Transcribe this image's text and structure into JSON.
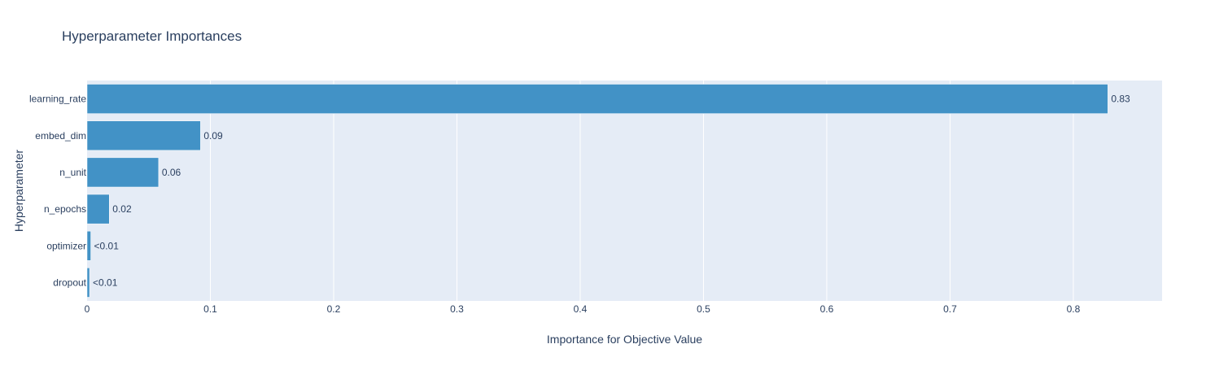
{
  "chart_data": {
    "type": "bar",
    "orientation": "horizontal",
    "title": "Hyperparameter Importances",
    "xlabel": "Importance for Objective Value",
    "ylabel": "Hyperparameter",
    "xlim": [
      0,
      0.872
    ],
    "x_ticks": [
      "0",
      "0.1",
      "0.2",
      "0.3",
      "0.4",
      "0.5",
      "0.6",
      "0.7",
      "0.8"
    ],
    "categories": [
      "learning_rate",
      "embed_dim",
      "n_unit",
      "n_epochs",
      "optimizer",
      "dropout"
    ],
    "values": [
      0.828,
      0.092,
      0.058,
      0.018,
      0.003,
      0.002
    ],
    "value_labels": [
      "0.83",
      "0.09",
      "0.06",
      "0.02",
      "<0.01",
      "<0.01"
    ],
    "grid": true,
    "bar_color": "#4292c6",
    "plot_background": "#e5ecf6"
  }
}
